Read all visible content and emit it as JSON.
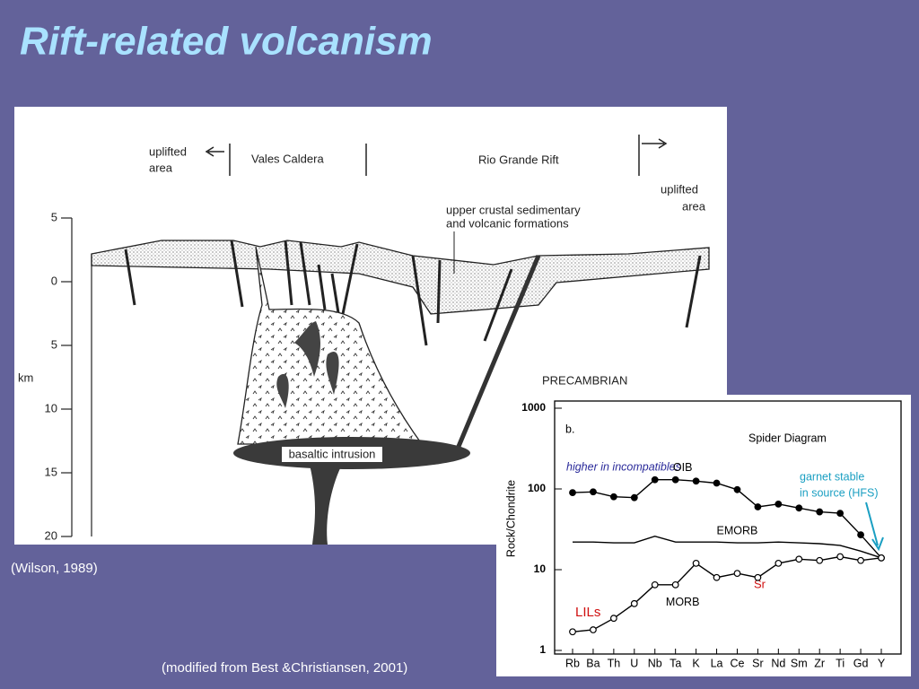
{
  "title": "Rift-related volcanism",
  "cross_section": {
    "uplifted_left": [
      "uplifted",
      "area"
    ],
    "caldera": "Vales Caldera",
    "rift": "Rio Grande Rift",
    "uplifted_right": [
      "uplifted",
      "area"
    ],
    "formations": [
      "upper crustal sedimentary",
      "and volcanic formations"
    ],
    "basement": "PRECAMBRIAN",
    "intrusion": "basaltic intrusion",
    "depth_label": "km",
    "depth_ticks": [
      "5",
      "0",
      "5",
      "10",
      "15",
      "20"
    ]
  },
  "caption_left": "(Wilson, 1989)",
  "caption_bottom": "(modified from Best &Christiansen, 2001)",
  "chart_data": {
    "type": "line",
    "panel": "b.",
    "title": "Spider Diagram",
    "y_label": "Rock/Chondrite",
    "log_y": true,
    "categories": [
      "Rb",
      "Ba",
      "Th",
      "U",
      "Nb",
      "Ta",
      "K",
      "La",
      "Ce",
      "Sr",
      "Nd",
      "Sm",
      "Zr",
      "Ti",
      "Gd",
      "Y"
    ],
    "series": [
      {
        "name": "OIB",
        "color": "#000000",
        "marker": "filled",
        "values": [
          90,
          92,
          80,
          78,
          130,
          130,
          125,
          118,
          98,
          60,
          65,
          58,
          52,
          50,
          27,
          14
        ]
      },
      {
        "name": "EMORB",
        "color": "#000000",
        "marker": "none",
        "values": [
          22,
          22,
          21.5,
          21.5,
          26,
          22,
          22,
          22,
          21.5,
          21.5,
          22,
          21.5,
          21,
          20,
          17,
          14
        ]
      },
      {
        "name": "MORB",
        "color": "#000000",
        "marker": "open",
        "values": [
          1.7,
          1.8,
          2.5,
          3.8,
          6.5,
          6.5,
          12,
          8,
          9,
          8,
          12,
          13.5,
          13,
          14.5,
          13,
          14
        ]
      }
    ],
    "ylim": [
      1,
      1000
    ],
    "yticks": [
      1,
      10,
      100,
      1000
    ],
    "annotations": {
      "incompatibles": "higher in incompatibles",
      "garnet": [
        "garnet stable",
        "in source (HFS)"
      ],
      "lils": "LILs",
      "sr": "Sr"
    }
  }
}
